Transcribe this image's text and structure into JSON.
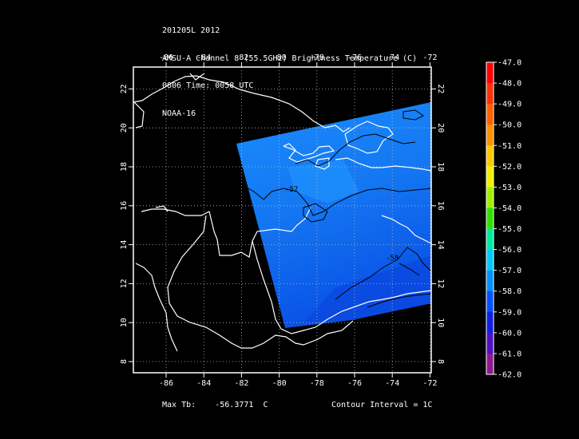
{
  "header": {
    "line1": "201205L 2012",
    "line2": "AMSU-A Channel 8 (55.5GHz) Brightness Temperature (C)",
    "line3": "0806 Time: 0058 UTC",
    "line4": "NOAA-16"
  },
  "footer": {
    "max_tb_label": "Max Tb:",
    "max_tb_value": "-56.3771",
    "max_tb_unit": "C",
    "contour_interval": "Contour Interval = 1C"
  },
  "map": {
    "lon_ticks": [
      "-86",
      "-84",
      "-82",
      "-80",
      "-78",
      "-76",
      "-74",
      "-72"
    ],
    "lat_ticks": [
      "8",
      "10",
      "12",
      "14",
      "16",
      "18",
      "20",
      "22"
    ],
    "contour_labels": [
      "-57",
      "-58"
    ]
  },
  "colorbar": {
    "labels": [
      "-47.0",
      "-48.0",
      "-49.0",
      "-50.0",
      "-51.0",
      "-52.0",
      "-53.0",
      "-54.0",
      "-55.0",
      "-56.0",
      "-57.0",
      "-58.0",
      "-59.0",
      "-60.0",
      "-61.0",
      "-62.0"
    ],
    "colors": [
      "#ff0000",
      "#ff3000",
      "#ff6000",
      "#ff9000",
      "#ffc800",
      "#f0f000",
      "#a0f000",
      "#30e000",
      "#00e8a0",
      "#00c8ff",
      "#0090ff",
      "#0050ff",
      "#1020e0",
      "#5010c0",
      "#901890",
      "#b03070"
    ]
  }
}
